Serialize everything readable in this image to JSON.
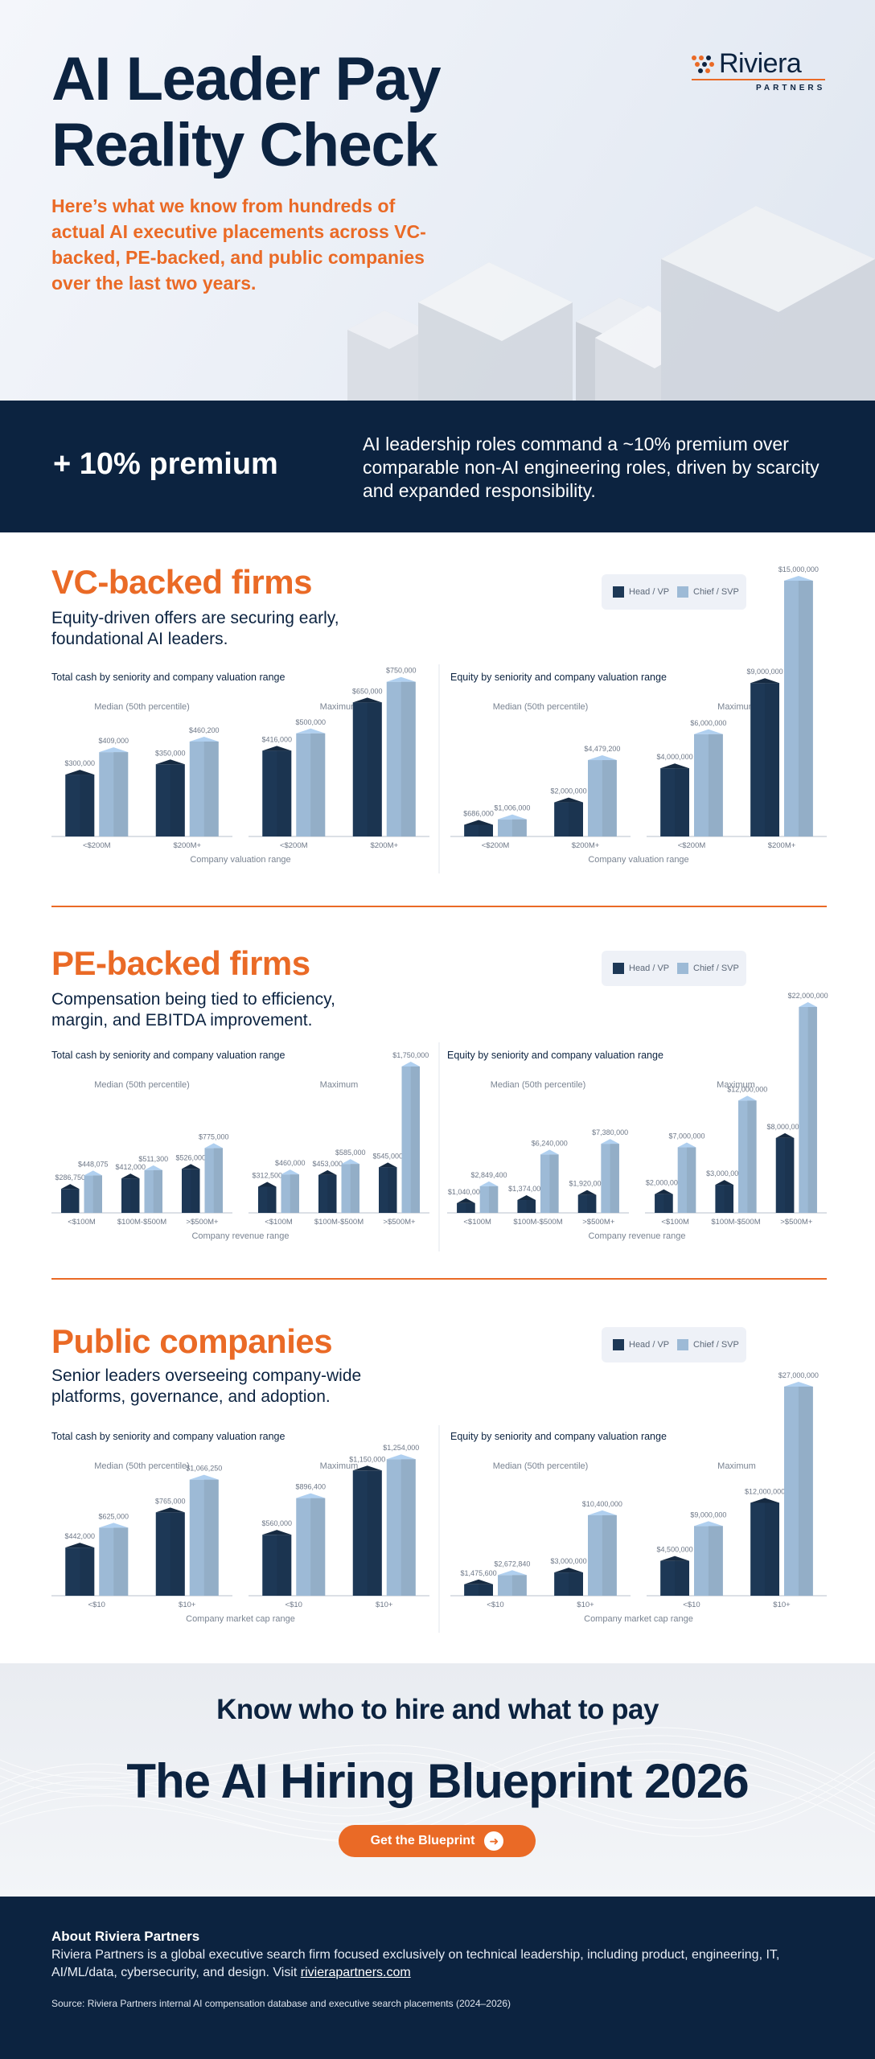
{
  "hero": {
    "title_line1": "AI Leader Pay",
    "title_line2": "Reality Check",
    "subtitle": "Here’s what we know from hundreds of actual AI executive placements across VC-backed, PE-backed, and public companies over the last two years.",
    "logo_word": "Riviera",
    "logo_sub": "PARTNERS"
  },
  "banner": {
    "big": "+ 10% premium",
    "text": "AI leadership roles command a ~10% premium over comparable non-AI engineering roles, driven by scarcity and expanded responsibility."
  },
  "colors": {
    "navy": "#0c2340",
    "orange": "#ea6a26",
    "head": "#1d3856",
    "chief": "#9dbad6"
  },
  "legend": {
    "head": "Head / VP",
    "chief": "Chief / SVP"
  },
  "sections": [
    {
      "title": "VC-backed firms",
      "desc": "Equity-driven offers are securing early, foundational AI leaders."
    },
    {
      "title": "PE-backed firms",
      "desc": "Compensation being tied to efficiency, margin, and EBITDA improvement."
    },
    {
      "title": "Public companies",
      "desc": "Senior leaders overseeing company-wide platforms, governance, and adoption."
    }
  ],
  "chart_data": [
    {
      "type": "bar",
      "section": "VC-backed firms",
      "title": "Total cash by seniority and company valuation range",
      "xlabel": "Company valuation range",
      "groups": [
        {
          "label": "Median (50th percentile)",
          "categories": [
            "<$200M",
            "$200M+"
          ],
          "series": [
            {
              "name": "Head / VP",
              "values": [
                300000,
                350000
              ],
              "labels": [
                "$300,000",
                "$350,000"
              ]
            },
            {
              "name": "Chief / SVP",
              "values": [
                409000,
                460200
              ],
              "labels": [
                "$409,000",
                "$460,200"
              ]
            }
          ]
        },
        {
          "label": "Maximum",
          "categories": [
            "<$200M",
            "$200M+"
          ],
          "series": [
            {
              "name": "Head / VP",
              "values": [
                416000,
                650000
              ],
              "labels": [
                "$416,000",
                "$650,000"
              ]
            },
            {
              "name": "Chief / SVP",
              "values": [
                500000,
                750000
              ],
              "labels": [
                "$500,000",
                "$750,000"
              ]
            }
          ]
        }
      ]
    },
    {
      "type": "bar",
      "section": "VC-backed firms",
      "title": "Equity by seniority and company valuation range",
      "xlabel": "Company valuation range",
      "groups": [
        {
          "label": "Median (50th percentile)",
          "categories": [
            "<$200M",
            "$200M+"
          ],
          "series": [
            {
              "name": "Head / VP",
              "values": [
                686000,
                2000000
              ],
              "labels": [
                "$686,000",
                "$2,000,000"
              ]
            },
            {
              "name": "Chief / SVP",
              "values": [
                1006000,
                4479200
              ],
              "labels": [
                "$1,006,000",
                "$4,479,200"
              ]
            }
          ]
        },
        {
          "label": "Maximum",
          "categories": [
            "<$200M",
            "$200M+"
          ],
          "series": [
            {
              "name": "Head / VP",
              "values": [
                4000000,
                9000000
              ],
              "labels": [
                "$4,000,000",
                "$9,000,000"
              ]
            },
            {
              "name": "Chief / SVP",
              "values": [
                6000000,
                15000000
              ],
              "labels": [
                "$6,000,000",
                "$15,000,000"
              ]
            }
          ]
        }
      ]
    },
    {
      "type": "bar",
      "section": "PE-backed firms",
      "title": "Total cash by seniority and company valuation range",
      "xlabel": "Company revenue range",
      "groups": [
        {
          "label": "Median (50th percentile)",
          "categories": [
            "<$100M",
            "$100M-$500M",
            ">$500M+"
          ],
          "series": [
            {
              "name": "Head / VP",
              "values": [
                286750,
                412000,
                526000
              ],
              "labels": [
                "$286,750",
                "$412,000",
                "$526,000"
              ]
            },
            {
              "name": "Chief / SVP",
              "values": [
                448075,
                511300,
                775000
              ],
              "labels": [
                "$448,075",
                "$511,300",
                "$775,000"
              ]
            }
          ]
        },
        {
          "label": "Maximum",
          "categories": [
            "<$100M",
            "$100M-$500M",
            ">$500M+"
          ],
          "series": [
            {
              "name": "Head / VP",
              "values": [
                312500,
                453000,
                545000
              ],
              "labels": [
                "$312,500",
                "$453,000",
                "$545,000"
              ]
            },
            {
              "name": "Chief / SVP",
              "values": [
                460000,
                585000,
                1750000
              ],
              "labels": [
                "$460,000",
                "$585,000",
                "$1,750,000"
              ]
            }
          ]
        }
      ]
    },
    {
      "type": "bar",
      "section": "PE-backed firms",
      "title": "Equity by seniority and company valuation range",
      "xlabel": "Company revenue range",
      "groups": [
        {
          "label": "Median (50th percentile)",
          "categories": [
            "<$100M",
            "$100M-$500M",
            ">$500M+"
          ],
          "series": [
            {
              "name": "Head / VP",
              "values": [
                1040000,
                1374000,
                1920000
              ],
              "labels": [
                "$1,040,000",
                "$1,374,000",
                "$1,920,000"
              ]
            },
            {
              "name": "Chief / SVP",
              "values": [
                2849400,
                6240000,
                7380000
              ],
              "labels": [
                "$2,849,400",
                "$6,240,000",
                "$7,380,000"
              ]
            }
          ]
        },
        {
          "label": "Maximum",
          "categories": [
            "<$100M",
            "$100M-$500M",
            ">$500M+"
          ],
          "series": [
            {
              "name": "Head / VP",
              "values": [
                2000000,
                3000000,
                8000000
              ],
              "labels": [
                "$2,000,000",
                "$3,000,000",
                "$8,000,000"
              ]
            },
            {
              "name": "Chief / SVP",
              "values": [
                7000000,
                12000000,
                22000000
              ],
              "labels": [
                "$7,000,000",
                "$12,000,000",
                "$22,000,000"
              ]
            }
          ]
        }
      ]
    },
    {
      "type": "bar",
      "section": "Public companies",
      "title": "Total cash by seniority and company valuation range",
      "xlabel": "Company market cap range",
      "groups": [
        {
          "label": "Median (50th percentile)",
          "categories": [
            "<$10",
            "$10+"
          ],
          "series": [
            {
              "name": "Head / VP",
              "values": [
                442000,
                765000
              ],
              "labels": [
                "$442,000",
                "$765,000"
              ]
            },
            {
              "name": "Chief / SVP",
              "values": [
                625000,
                1066250
              ],
              "labels": [
                "$625,000",
                "$1,066,250"
              ]
            }
          ]
        },
        {
          "label": "Maximum",
          "categories": [
            "<$10",
            "$10+"
          ],
          "series": [
            {
              "name": "Head / VP",
              "values": [
                560000,
                1150000
              ],
              "labels": [
                "$560,000",
                "$1,150,000"
              ]
            },
            {
              "name": "Chief / SVP",
              "values": [
                896400,
                1254000
              ],
              "labels": [
                "$896,400",
                "$1,254,000"
              ]
            }
          ]
        }
      ]
    },
    {
      "type": "bar",
      "section": "Public companies",
      "title": "Equity by seniority and company valuation range",
      "xlabel": "Company market cap range",
      "groups": [
        {
          "label": "Median (50th percentile)",
          "categories": [
            "<$10",
            "$10+"
          ],
          "series": [
            {
              "name": "Head / VP",
              "values": [
                1475600,
                3000000
              ],
              "labels": [
                "$1,475,600",
                "$3,000,000"
              ]
            },
            {
              "name": "Chief / SVP",
              "values": [
                2672840,
                10400000
              ],
              "labels": [
                "$2,672,840",
                "$10,400,000"
              ]
            }
          ]
        },
        {
          "label": "Maximum",
          "categories": [
            "<$10",
            "$10+"
          ],
          "series": [
            {
              "name": "Head / VP",
              "values": [
                4500000,
                12000000
              ],
              "labels": [
                "$4,500,000",
                "$12,000,000"
              ]
            },
            {
              "name": "Chief / SVP",
              "values": [
                9000000,
                27000000
              ],
              "labels": [
                "$9,000,000",
                "$27,000,000"
              ]
            }
          ]
        }
      ]
    }
  ],
  "cta": {
    "heading": "Know who to hire and what to pay",
    "title": "The AI Hiring Blueprint 2026",
    "button": "Get the Blueprint"
  },
  "footer": {
    "title": "About Riviera Partners",
    "body": "Riviera Partners is a global executive search firm focused exclusively on technical leadership, including product, engineering, IT, AI/ML/data, cybersecurity, and design. Visit ",
    "link": "rivierapartners.com",
    "source": "Source: Riviera Partners internal AI compensation database and executive search placements (2024–2026)"
  }
}
